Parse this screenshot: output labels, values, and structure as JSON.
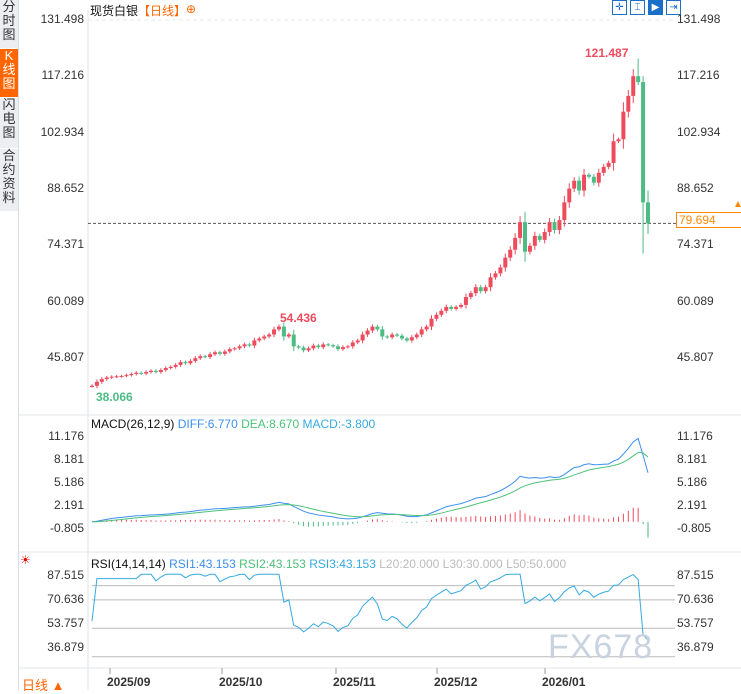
{
  "sidebar": {
    "tabs": [
      {
        "label": "分时图"
      },
      {
        "label": "K线图",
        "active": true
      },
      {
        "label": "闪电图"
      },
      {
        "label": "合约资料"
      }
    ],
    "period": "日线 ▲"
  },
  "title": {
    "name": "现货白银",
    "period": "【日线】",
    "add_icon": "plus-circle-icon"
  },
  "toolbar": [
    "crosshair-icon",
    "range-icon",
    "play-icon",
    "move-right-icon"
  ],
  "price_axis": [
    "131.498",
    "117.216",
    "102.934",
    "88.652",
    "74.371",
    "60.089",
    "45.807"
  ],
  "current_price": "79.694",
  "annotations": {
    "high": "121.487",
    "low": "38.066",
    "local_high": "54.436"
  },
  "macd": {
    "label": "MACD(26,12,9)",
    "diff": "DIFF:6.770",
    "dea": "DEA:8.670",
    "macd": "MACD:-3.800",
    "axis": [
      "11.176",
      "8.181",
      "5.186",
      "2.191",
      "-0.805"
    ]
  },
  "rsi": {
    "label": "RSI(14,14,14)",
    "rsi1": "RSI1:43.153",
    "rsi2": "RSI2:43.153",
    "rsi3": "RSI3:43.153",
    "l20": "L20:20.000",
    "l30": "L30:30.000",
    "l50": "L50:50.000",
    "axis": [
      "87.515",
      "70.636",
      "53.757",
      "36.879"
    ]
  },
  "x_axis": [
    "2025/09",
    "2025/10",
    "2025/11",
    "2025/12",
    "2026/01"
  ],
  "watermark": "FX678",
  "colors": {
    "up": "#ee4b5d",
    "down": "#4dbb84",
    "diff": "#3b8ff0",
    "dea": "#4dc27a",
    "rsi": "#36a9e1",
    "accent": "#ff7a00"
  },
  "chart_data": {
    "type": "candlestick",
    "ylim": [
      38.066,
      131.498
    ],
    "closes": [
      38.5,
      39.5,
      40.2,
      40.6,
      40.8,
      40.9,
      41.0,
      41.2,
      41.5,
      41.8,
      41.6,
      42.0,
      42.3,
      42.0,
      42.5,
      43.0,
      43.3,
      43.8,
      44.5,
      44.2,
      44.8,
      45.5,
      46.0,
      45.8,
      46.5,
      47.0,
      46.6,
      47.2,
      47.8,
      48.0,
      48.5,
      49.0,
      48.7,
      50.0,
      50.5,
      51.0,
      51.5,
      52.8,
      53.5,
      51.0,
      51.5,
      48.5,
      48.2,
      47.5,
      48.0,
      48.7,
      48.3,
      49.0,
      48.8,
      48.5,
      47.8,
      48.3,
      48.5,
      49.5,
      50.0,
      51.5,
      52.5,
      53.5,
      52.8,
      51.0,
      50.8,
      51.5,
      51.2,
      50.5,
      50.0,
      50.8,
      51.5,
      52.8,
      53.5,
      55.5,
      56.5,
      57.5,
      58.5,
      58.0,
      58.5,
      59.0,
      61.0,
      62.0,
      63.5,
      62.5,
      63.5,
      66.0,
      67.0,
      68.5,
      71.0,
      73.0,
      76.0,
      80.0,
      72.5,
      74.0,
      76.5,
      75.5,
      77.5,
      80.0,
      78.0,
      80.5,
      85.0,
      88.5,
      90.5,
      88.0,
      92.0,
      91.5,
      90.0,
      92.5,
      94.0,
      95.0,
      100.5,
      101.0,
      108.0,
      112.0,
      117.0,
      115.5,
      85.0,
      79.694
    ]
  }
}
